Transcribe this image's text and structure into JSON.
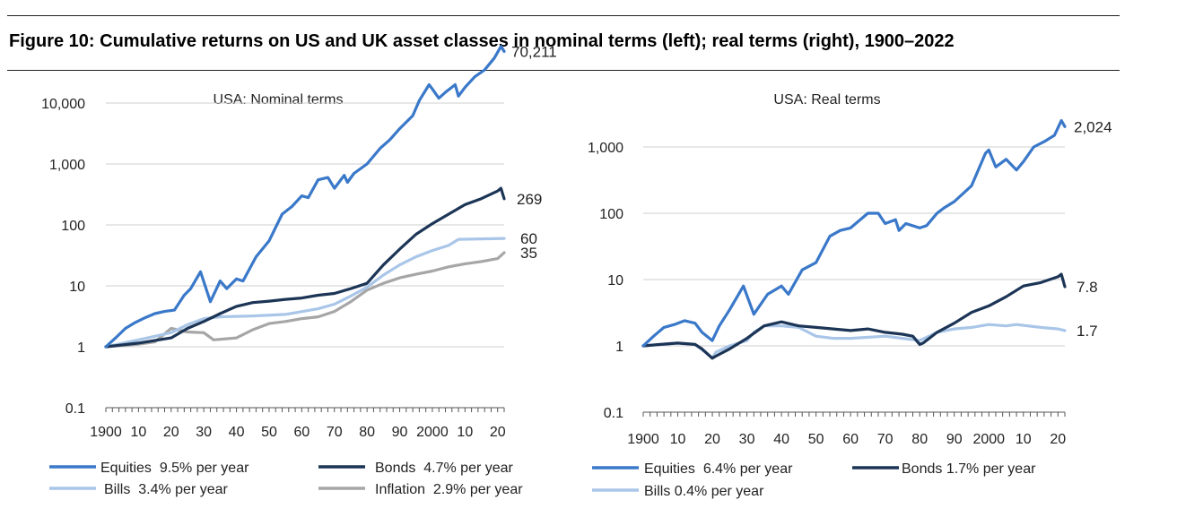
{
  "figure": {
    "title": "Figure 10: Cumulative returns on US and UK asset classes in nominal terms (left); real terms (right), 1900–2022"
  },
  "colors": {
    "equities": "#3a78c9",
    "bonds": "#1c3556",
    "bills": "#a9c6e8",
    "inflation": "#a6a6a6",
    "grid": "#cfcfcf"
  },
  "chart_data": [
    {
      "type": "line",
      "title": "USA: Nominal terms",
      "yscale": "log",
      "ylim": [
        0.1,
        100000
      ],
      "xlim": [
        1900,
        2022
      ],
      "yticks": [
        0.1,
        1,
        10,
        100,
        1000,
        10000
      ],
      "ytick_labels": [
        "0.1",
        "1",
        "10",
        "100",
        "1,000",
        "10,000"
      ],
      "xticks": [
        1900,
        1910,
        1920,
        1930,
        1940,
        1950,
        1960,
        1970,
        1980,
        1990,
        2000,
        2010,
        2020
      ],
      "xtick_labels": [
        "1900",
        "10",
        "20",
        "30",
        "40",
        "50",
        "60",
        "70",
        "80",
        "90",
        "2000",
        "10",
        "20"
      ],
      "grid": "horizontal",
      "legend": "bottom",
      "series": [
        {
          "name": "Equities  9.5% per year",
          "color": "#3a78c9",
          "end_label": "70,211",
          "x": [
            1900,
            1903,
            1906,
            1909,
            1912,
            1915,
            1918,
            1921,
            1924,
            1926,
            1929,
            1932,
            1935,
            1937,
            1940,
            1942,
            1946,
            1950,
            1954,
            1957,
            1960,
            1962,
            1965,
            1968,
            1970,
            1973,
            1974,
            1976,
            1980,
            1984,
            1987,
            1990,
            1994,
            1996,
            1999,
            2000,
            2002,
            2004,
            2007,
            2008,
            2010,
            2013,
            2016,
            2019,
            2021,
            2022
          ],
          "y": [
            1,
            1.4,
            2,
            2.5,
            3,
            3.5,
            3.8,
            4,
            7,
            9,
            17,
            5.5,
            12,
            9,
            13,
            12,
            30,
            55,
            150,
            200,
            300,
            280,
            550,
            600,
            400,
            650,
            500,
            700,
            1000,
            1800,
            2500,
            3800,
            6200,
            11000,
            20000,
            17000,
            12000,
            15000,
            20000,
            13000,
            18000,
            27000,
            35000,
            55000,
            85000,
            70211
          ]
        },
        {
          "name": "Bonds  4.7% per year",
          "color": "#1c3556",
          "end_label": "269",
          "x": [
            1900,
            1910,
            1920,
            1925,
            1930,
            1935,
            1940,
            1945,
            1950,
            1955,
            1960,
            1965,
            1970,
            1975,
            1980,
            1985,
            1990,
            1995,
            2000,
            2005,
            2010,
            2015,
            2020,
            2021,
            2022
          ],
          "y": [
            1,
            1.15,
            1.4,
            2,
            2.6,
            3.5,
            4.6,
            5.3,
            5.6,
            6,
            6.3,
            7,
            7.5,
            9,
            11,
            22,
            40,
            70,
            105,
            150,
            215,
            270,
            360,
            400,
            269
          ]
        },
        {
          "name": "Bills  3.4% per year",
          "color": "#a9c6e8",
          "end_label": "60",
          "x": [
            1900,
            1910,
            1920,
            1925,
            1930,
            1935,
            1945,
            1955,
            1965,
            1970,
            1975,
            1980,
            1985,
            1990,
            1995,
            2000,
            2005,
            2008,
            2015,
            2022
          ],
          "y": [
            1,
            1.3,
            1.7,
            2.3,
            2.9,
            3.1,
            3.2,
            3.4,
            4.2,
            5,
            6.8,
            9.5,
            15,
            22,
            30,
            38,
            46,
            58,
            59,
            60
          ]
        },
        {
          "name": "Inflation  2.9% per year",
          "color": "#a6a6a6",
          "end_label": "35",
          "x": [
            1900,
            1910,
            1915,
            1920,
            1925,
            1930,
            1933,
            1940,
            1945,
            1950,
            1955,
            1960,
            1965,
            1970,
            1975,
            1980,
            1985,
            1990,
            1995,
            2000,
            2005,
            2010,
            2015,
            2020,
            2022
          ],
          "y": [
            1,
            1.1,
            1.2,
            2,
            1.75,
            1.7,
            1.3,
            1.4,
            1.9,
            2.4,
            2.6,
            2.9,
            3.1,
            3.8,
            5.5,
            8.5,
            11,
            13.5,
            15.5,
            17.5,
            20.5,
            23,
            25,
            28,
            35
          ]
        }
      ]
    },
    {
      "type": "line",
      "title": "USA: Real terms",
      "yscale": "log",
      "ylim": [
        0.1,
        10000
      ],
      "xlim": [
        1900,
        2022
      ],
      "yticks": [
        0.1,
        1,
        10,
        100,
        1000
      ],
      "ytick_labels": [
        "0.1",
        "1",
        "10",
        "100",
        "1,000"
      ],
      "xticks": [
        1900,
        1910,
        1920,
        1930,
        1940,
        1950,
        1960,
        1970,
        1980,
        1990,
        2000,
        2010,
        2020
      ],
      "xtick_labels": [
        "1900",
        "10",
        "20",
        "30",
        "40",
        "50",
        "60",
        "70",
        "80",
        "90",
        "2000",
        "10",
        "20"
      ],
      "grid": "horizontal",
      "legend": "bottom",
      "series": [
        {
          "name": "Equities  6.4% per year",
          "color": "#3a78c9",
          "end_label": "2,024",
          "x": [
            1900,
            1903,
            1906,
            1909,
            1912,
            1915,
            1917,
            1920,
            1922,
            1925,
            1929,
            1932,
            1936,
            1940,
            1942,
            1946,
            1950,
            1954,
            1957,
            1960,
            1965,
            1968,
            1970,
            1973,
            1974,
            1976,
            1980,
            1982,
            1985,
            1987,
            1990,
            1995,
            1999,
            2000,
            2002,
            2005,
            2008,
            2010,
            2013,
            2016,
            2019,
            2021,
            2022
          ],
          "y": [
            1,
            1.4,
            1.9,
            2.1,
            2.4,
            2.2,
            1.6,
            1.2,
            2,
            3.5,
            8,
            3,
            6,
            8,
            6,
            14,
            18,
            45,
            55,
            60,
            100,
            100,
            70,
            80,
            55,
            70,
            60,
            65,
            100,
            120,
            150,
            260,
            800,
            900,
            500,
            650,
            450,
            600,
            1000,
            1200,
            1500,
            2500,
            2024
          ]
        },
        {
          "name": "Bonds 1.7% per year",
          "color": "#1c3556",
          "end_label": "7.8",
          "x": [
            1900,
            1905,
            1910,
            1915,
            1917,
            1920,
            1921,
            1925,
            1930,
            1935,
            1940,
            1945,
            1950,
            1955,
            1960,
            1965,
            1970,
            1975,
            1978,
            1980,
            1981,
            1985,
            1990,
            1995,
            2000,
            2005,
            2010,
            2015,
            2020,
            2021,
            2022
          ],
          "y": [
            1,
            1.05,
            1.1,
            1.05,
            0.9,
            0.65,
            0.7,
            0.9,
            1.3,
            2,
            2.3,
            2,
            1.9,
            1.8,
            1.7,
            1.8,
            1.6,
            1.5,
            1.4,
            1.05,
            1.1,
            1.6,
            2.2,
            3.2,
            4,
            5.5,
            8,
            9,
            11,
            12,
            7.8
          ]
        },
        {
          "name": "Bills 0.4% per year",
          "color": "#a9c6e8",
          "end_label": "1.7",
          "x": [
            1900,
            1910,
            1915,
            1918,
            1920,
            1921,
            1925,
            1930,
            1932,
            1935,
            1940,
            1945,
            1950,
            1955,
            1960,
            1970,
            1975,
            1980,
            1985,
            1990,
            1995,
            2000,
            2005,
            2008,
            2015,
            2020,
            2022
          ],
          "y": [
            1,
            1.1,
            1.05,
            0.8,
            0.65,
            0.8,
            1,
            1.2,
            1.6,
            2,
            2,
            1.9,
            1.4,
            1.3,
            1.3,
            1.4,
            1.3,
            1.2,
            1.6,
            1.8,
            1.9,
            2.1,
            2,
            2.1,
            1.9,
            1.8,
            1.7
          ]
        }
      ]
    }
  ]
}
